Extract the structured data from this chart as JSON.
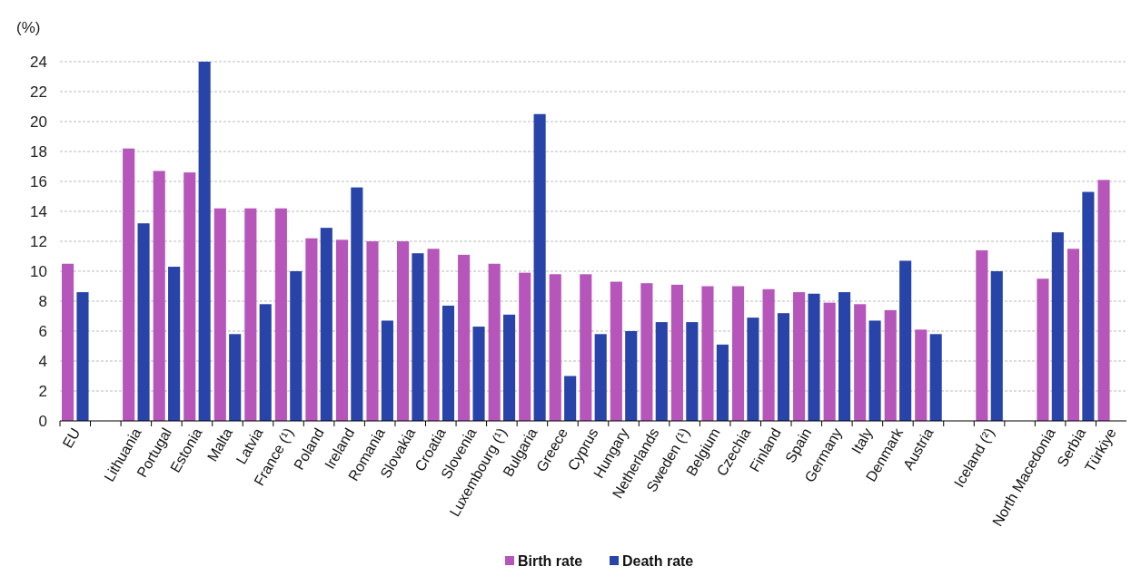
{
  "chart_data": {
    "type": "bar",
    "ylabel": "(%)",
    "categories": [
      "EU",
      null,
      "Lithuania",
      "Portugal",
      "Estonia",
      "Malta",
      "Latvia",
      "France (¹)",
      "Poland",
      "Ireland",
      "Romania",
      "Slovakia",
      "Croatia",
      "Slovenia",
      "Luxembourg (¹)",
      "Bulgaria",
      "Greece",
      "Cyprus",
      "Hungary",
      "Netherlands",
      "Sweden (¹)",
      "Belgium",
      "Czechia",
      "Finland",
      "Spain",
      "Germany",
      "Italy",
      "Denmark",
      "Austria",
      null,
      "Iceland (²)",
      null,
      "North Macedonia",
      "Serbia",
      "Türkiye"
    ],
    "series": [
      {
        "name": "Birth rate",
        "color": "#b656bb",
        "values": [
          10.5,
          null,
          18.2,
          16.7,
          16.6,
          14.2,
          14.2,
          14.2,
          12.2,
          12.1,
          12.0,
          12.0,
          11.5,
          11.1,
          10.5,
          9.9,
          9.8,
          9.8,
          9.3,
          9.2,
          9.1,
          9.0,
          9.0,
          8.8,
          8.6,
          7.9,
          7.8,
          7.4,
          6.1,
          null,
          11.4,
          null,
          9.5,
          11.5,
          16.1
        ]
      },
      {
        "name": "Death rate",
        "color": "#2944a8",
        "values": [
          8.6,
          null,
          13.2,
          10.3,
          24.0,
          5.8,
          7.8,
          10.0,
          12.9,
          15.6,
          6.7,
          11.2,
          7.7,
          6.3,
          7.1,
          20.5,
          3.0,
          5.8,
          6.0,
          6.6,
          6.6,
          5.1,
          6.9,
          7.2,
          8.5,
          8.6,
          6.7,
          10.7,
          5.8,
          null,
          10.0,
          null,
          12.6,
          15.3,
          null
        ]
      }
    ],
    "ylim": [
      0,
      24
    ],
    "yticks": [
      0,
      2,
      4,
      6,
      8,
      10,
      12,
      14,
      16,
      18,
      20,
      22,
      24
    ],
    "grid": "y",
    "legend": "bottom"
  }
}
